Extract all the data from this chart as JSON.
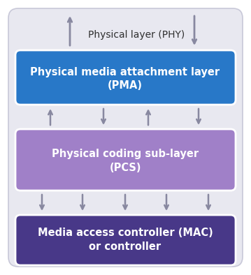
{
  "bg_color": "#ffffff",
  "outer_box_facecolor": "#e8e8f0",
  "outer_box_edgecolor": "#c8c8d8",
  "pma_color": "#2878c8",
  "pcs_color": "#a080c8",
  "mac_color": "#483888",
  "text_white": "#ffffff",
  "text_dark": "#303030",
  "arrow_color": "#8888a0",
  "phy_label": "Physical layer (PHY)",
  "pma_line1": "Physical media attachment layer",
  "pma_line2": "(PMA)",
  "pcs_line1": "Physical coding sub-layer",
  "pcs_line2": "(PCS)",
  "mac_line1": "Media access controller (MAC)",
  "mac_line2": "or controller",
  "figsize": [
    3.59,
    3.94
  ],
  "dpi": 100
}
